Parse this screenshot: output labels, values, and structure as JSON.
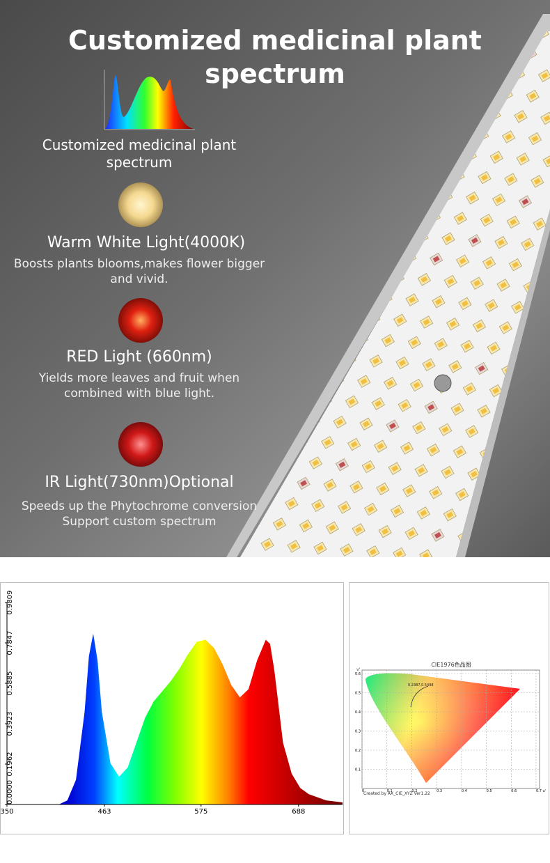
{
  "header": {
    "title": "Customized medicinal plant spectrum"
  },
  "features": [
    {
      "title": "Customized medicinal plant spectrum"
    },
    {
      "title": "Warm White Light(4000K)",
      "description": "Boosts plants blooms,makes flower bigger and vivid."
    },
    {
      "title": "RED Light (660nm)",
      "description": "Yields more leaves and fruit when combined with blue light."
    },
    {
      "title": "IR Light(730nm)Optional",
      "description": "Speeds up the Phytochrome conversion Support custom spectrum"
    }
  ],
  "spectrum_chart": {
    "type": "area",
    "x": [
      410,
      420,
      430,
      440,
      445,
      450,
      455,
      460,
      470,
      480,
      490,
      500,
      510,
      520,
      530,
      540,
      550,
      560,
      570,
      580,
      590,
      600,
      610,
      620,
      630,
      640,
      650,
      655,
      660,
      670,
      680,
      690,
      700,
      720,
      739
    ],
    "values": [
      0,
      0.02,
      0.12,
      0.45,
      0.72,
      0.83,
      0.7,
      0.45,
      0.2,
      0.135,
      0.18,
      0.3,
      0.42,
      0.5,
      0.55,
      0.6,
      0.66,
      0.73,
      0.79,
      0.8,
      0.76,
      0.68,
      0.58,
      0.52,
      0.56,
      0.7,
      0.8,
      0.78,
      0.65,
      0.3,
      0.15,
      0.08,
      0.05,
      0.02,
      0.01
    ],
    "xlim": [
      350,
      739
    ],
    "ylim": [
      0,
      0.9809
    ],
    "xticks": [
      350,
      463,
      575,
      688
    ],
    "yticks": [
      {
        "value": 0,
        "label": "0.0000"
      },
      {
        "value": 0.1962,
        "label": "0.1962"
      },
      {
        "value": 0.3923,
        "label": "0.3923"
      },
      {
        "value": 0.5885,
        "label": "0.5885"
      },
      {
        "value": 0.7847,
        "label": "0.7847"
      },
      {
        "value": 0.9809,
        "label": "0.9809"
      }
    ]
  },
  "cie_chart": {
    "title": "CIE1976色品图",
    "point_label": "0.2387,0.5498",
    "footer": "Created by AX_CIE_XYZ Ver1.22",
    "y_axis_label": "v'",
    "x_ticks": [
      "0",
      "0.1",
      "0.2",
      "0.3",
      "0.4",
      "0.5",
      "0.6",
      "0.7 u'"
    ],
    "y_ticks": [
      "0.1",
      "0.2",
      "0.3",
      "0.4",
      "0.5",
      "0.6"
    ]
  }
}
